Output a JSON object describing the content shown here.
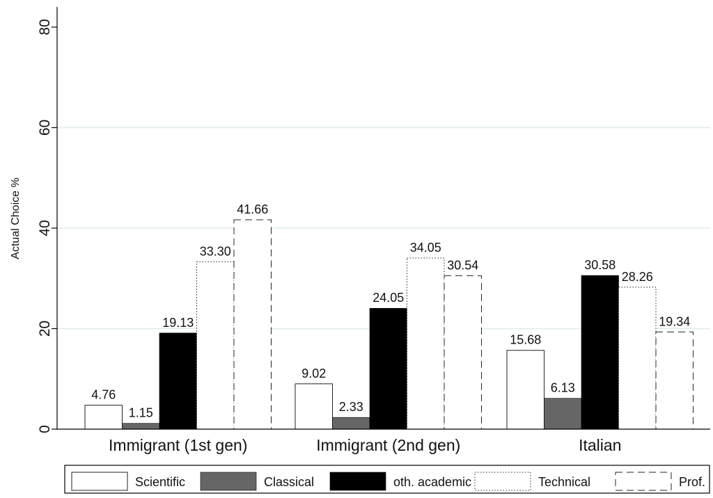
{
  "chart_data": {
    "type": "bar",
    "title": "",
    "xlabel": "",
    "ylabel": "Actual Choice %",
    "ylim": [
      0,
      80
    ],
    "yticks": [
      0,
      20,
      40,
      60,
      80
    ],
    "grid": true,
    "legend_position": "bottom",
    "categories": [
      "Immigrant (1st gen)",
      "Immigrant (2nd gen)",
      "Italian"
    ],
    "series": [
      {
        "name": "Scientific",
        "values": [
          4.76,
          9.02,
          15.68
        ],
        "labels": [
          "4.76",
          "9.02",
          "15.68"
        ],
        "style": "outline-solid",
        "fill": "#ffffff"
      },
      {
        "name": "Classical",
        "values": [
          1.15,
          2.33,
          6.13
        ],
        "labels": [
          "1.15",
          "2.33",
          "6.13"
        ],
        "style": "filled",
        "fill": "#666666"
      },
      {
        "name": "oth. academic",
        "values": [
          19.13,
          24.05,
          30.58
        ],
        "labels": [
          "19.13",
          "24.05",
          "30.58"
        ],
        "style": "filled",
        "fill": "#000000"
      },
      {
        "name": "Technical",
        "values": [
          33.3,
          34.05,
          28.26
        ],
        "labels": [
          "33.30",
          "34.05",
          "28.26"
        ],
        "style": "outline-dotted",
        "fill": "#ffffff"
      },
      {
        "name": "Prof.",
        "values": [
          41.66,
          30.54,
          19.34
        ],
        "labels": [
          "41.66",
          "30.54",
          "19.34"
        ],
        "style": "outline-dashed",
        "fill": "#ffffff"
      }
    ],
    "colors": {
      "grid": "#e0ecec",
      "axis": "#000000",
      "text": "#111111"
    }
  }
}
